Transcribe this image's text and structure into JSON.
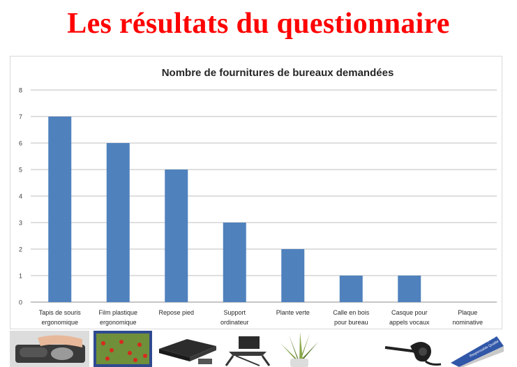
{
  "slide": {
    "title": "Les résultats du questionnaire",
    "title_color": "#ff0000"
  },
  "chart_data": {
    "type": "bar",
    "title": "Nombre de fournitures de bureaux demandées",
    "xlabel": "",
    "ylabel": "",
    "categories": [
      [
        "Tapis de souris",
        "ergonomique"
      ],
      [
        "Film plastique",
        "ergonomique"
      ],
      [
        "Repose pied"
      ],
      [
        "Support",
        "ordinateur"
      ],
      [
        "Plante verte"
      ],
      [
        "Calle en bois",
        "pour bureau"
      ],
      [
        "Casque pour",
        "appels vocaux"
      ],
      [
        "Plaque",
        "nominative"
      ]
    ],
    "values": [
      7,
      6,
      5,
      3,
      2,
      1,
      1,
      0
    ],
    "ylim": [
      0,
      8
    ],
    "yticks": [
      0,
      1,
      2,
      3,
      4,
      5,
      6,
      7,
      8
    ],
    "grid": true,
    "legend": "none",
    "bar_color": "#4f81bd"
  },
  "photos": [
    {
      "name": "mouse-pad-photo"
    },
    {
      "name": "screen-filter-photo"
    },
    {
      "name": "footrest-photo"
    },
    {
      "name": "laptop-stand-photo"
    },
    {
      "name": "plant-photo"
    },
    {
      "name": "headset-photo"
    },
    {
      "name": "nameplate-photo",
      "text": [
        "Isabelle Dupont",
        "Responsable Qualité"
      ]
    }
  ]
}
